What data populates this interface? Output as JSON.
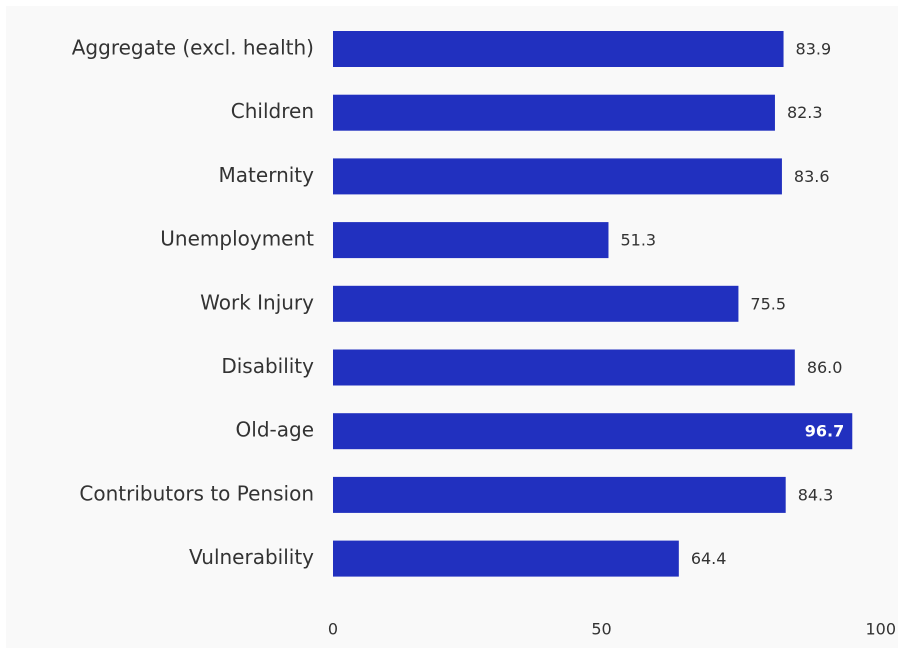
{
  "chart_data": {
    "type": "bar",
    "orientation": "horizontal",
    "categories": [
      "Aggregate (excl. health)",
      "Children",
      "Maternity",
      "Unemployment",
      "Work Injury",
      "Disability",
      "Old-age",
      "Contributors to Pension",
      "Vulnerability"
    ],
    "values": [
      83.9,
      82.3,
      83.6,
      51.3,
      75.5,
      86.0,
      96.7,
      84.3,
      64.4
    ],
    "value_labels": [
      "83.9",
      "82.3",
      "83.6",
      "51.3",
      "75.5",
      "86.0",
      "96.7",
      "84.3",
      "64.4"
    ],
    "xlim": [
      0,
      100
    ],
    "x_ticks": [
      "0",
      "50",
      "100"
    ],
    "bar_color": "#2130bf",
    "grid": false,
    "legend": "none"
  }
}
